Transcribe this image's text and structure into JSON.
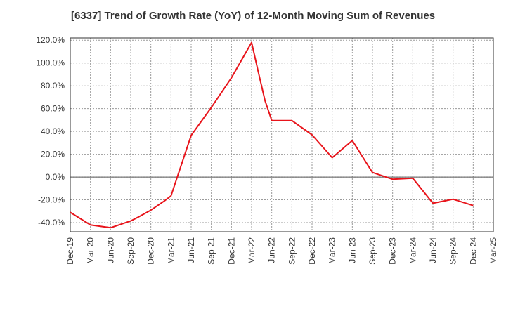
{
  "chart_data": {
    "type": "line",
    "title": "[6337]  Trend of Growth Rate (YoY) of 12-Month Moving Sum of Revenues",
    "xlabel": "",
    "ylabel": "",
    "ylim": [
      -48,
      122
    ],
    "y_ticks": [
      "120.0%",
      "100.0%",
      "80.0%",
      "60.0%",
      "40.0%",
      "20.0%",
      "0.0%",
      "-20.0%",
      "-40.0%"
    ],
    "y_tick_values": [
      120,
      100,
      80,
      60,
      40,
      20,
      0,
      -20,
      -40
    ],
    "x_ticks": [
      "Dec-19",
      "Mar-20",
      "Jun-20",
      "Sep-20",
      "Dec-20",
      "Mar-21",
      "Jun-21",
      "Sep-21",
      "Dec-21",
      "Mar-22",
      "Jun-22",
      "Sep-22",
      "Dec-22",
      "Mar-23",
      "Jun-23",
      "Sep-23",
      "Dec-23",
      "Mar-24",
      "Jun-24",
      "Sep-24",
      "Dec-24",
      "Mar-25"
    ],
    "grid": true,
    "series": [
      {
        "color": "#e8141b",
        "x": [
          "Dec-19",
          "Mar-20",
          "Jun-20",
          "Sep-20",
          "Oct-20",
          "Dec-20",
          "Feb-21",
          "Mar-21",
          "Jun-21",
          "Sep-21",
          "Dec-21",
          "Mar-22",
          "Apr-22",
          "May-22",
          "Jun-22",
          "Sep-22",
          "Dec-22",
          "Mar-23",
          "Jun-23",
          "Sep-23",
          "Dec-23",
          "Mar-24",
          "Jun-24",
          "Sep-24",
          "Dec-24"
        ],
        "y": [
          -31,
          -42,
          -44.5,
          -38.5,
          -35.5,
          -29,
          -21,
          -16.5,
          36.5,
          61,
          87,
          118,
          92,
          67,
          49.5,
          49.5,
          37,
          17,
          32,
          4,
          -2,
          -1,
          -23,
          -19.5,
          -25
        ]
      }
    ]
  }
}
